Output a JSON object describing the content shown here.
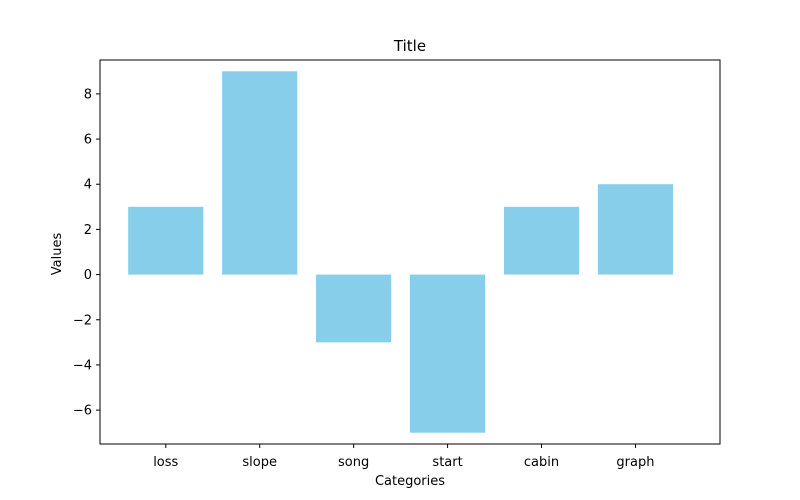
{
  "chart_data": {
    "type": "bar",
    "title": "Title",
    "xlabel": "Categories",
    "ylabel": "Values",
    "categories": [
      "loss",
      "slope",
      "song",
      "start",
      "cabin",
      "graph"
    ],
    "values": [
      3,
      9,
      -3,
      -7,
      3,
      4
    ],
    "ylim": [
      -7.5,
      9.5
    ],
    "yticks": [
      -6,
      -4,
      -2,
      0,
      2,
      4,
      6,
      8
    ],
    "ytick_labels": [
      "−6",
      "−4",
      "−2",
      "0",
      "2",
      "4",
      "6",
      "8"
    ],
    "grid": false,
    "legend": "none",
    "bar_color": "#87ceeb"
  }
}
